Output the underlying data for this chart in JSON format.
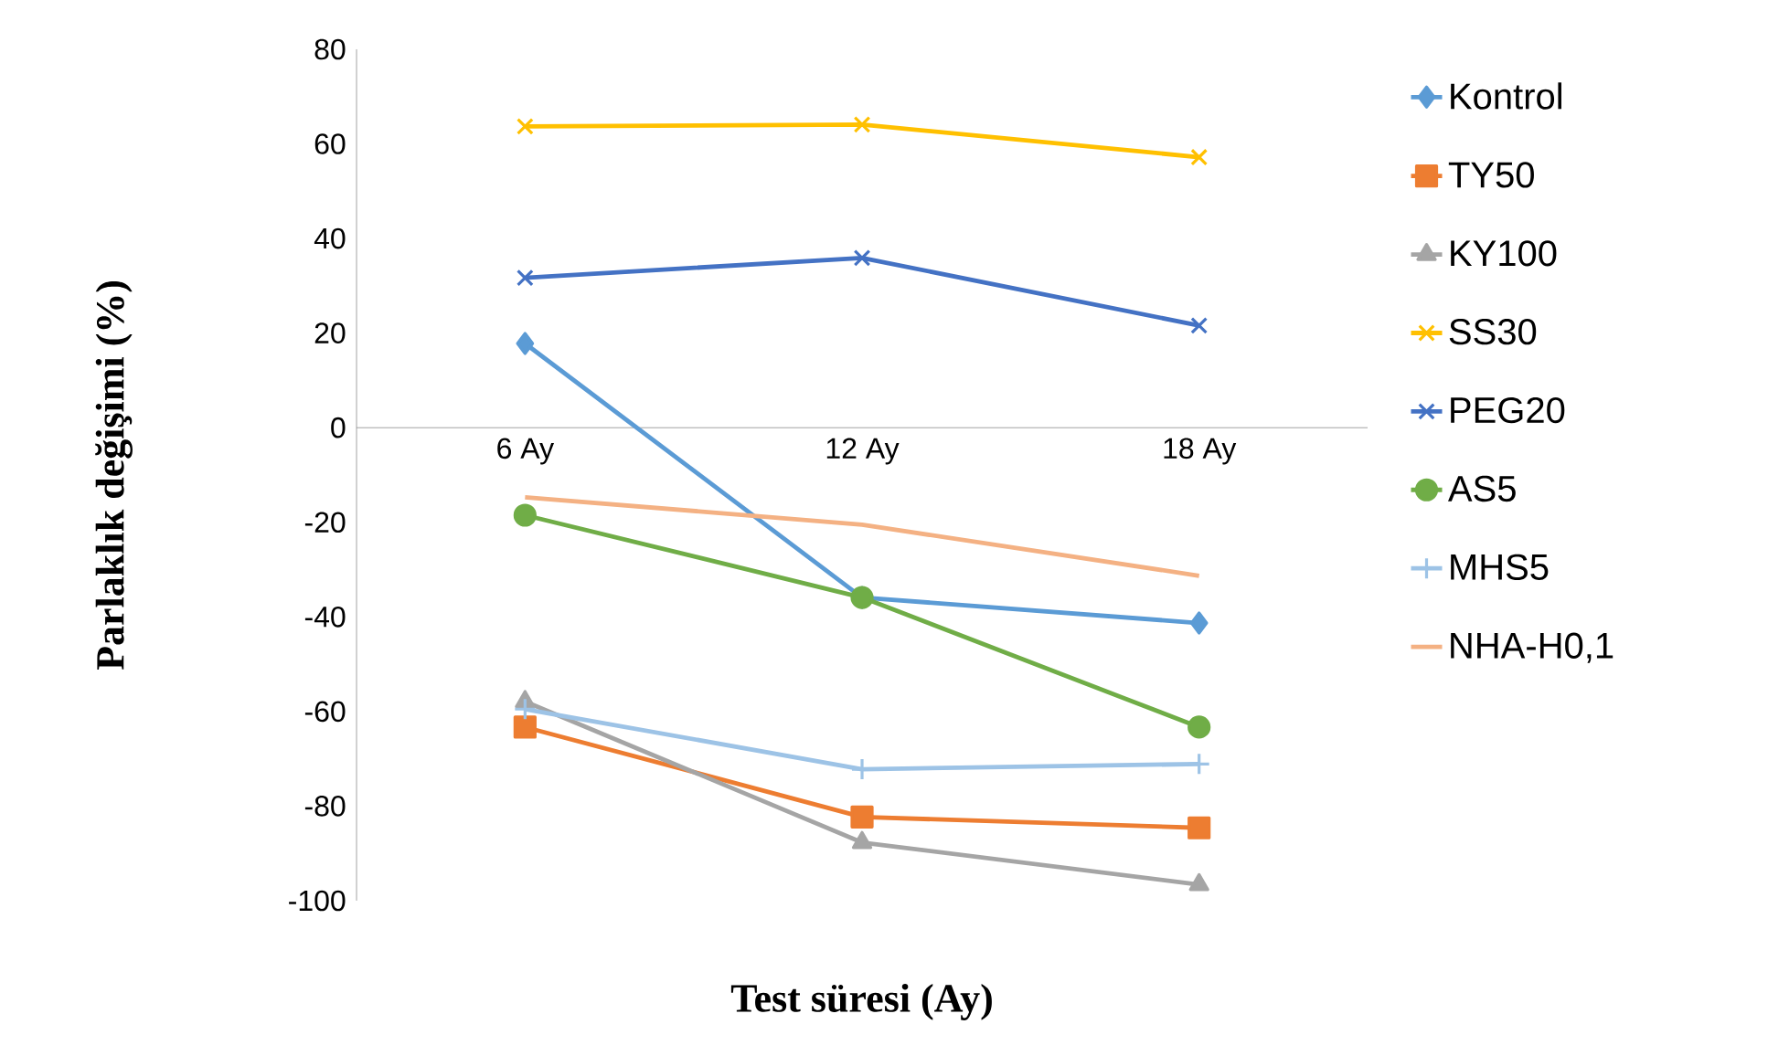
{
  "chart_data": {
    "type": "line",
    "xlabel": "Test süresi (Ay)",
    "ylabel": "Parlaklık değişimi (%)",
    "categories": [
      "6 Ay",
      "12 Ay",
      "18 Ay"
    ],
    "ylim": [
      -100,
      80
    ],
    "yticks": [
      -100,
      -80,
      -60,
      -40,
      -20,
      0,
      20,
      40,
      60,
      80
    ],
    "legend": "right",
    "series": [
      {
        "name": "Kontrol",
        "color": "#5b9bd5",
        "marker": "diamond",
        "values": [
          17.8,
          -35.9,
          -41.3
        ]
      },
      {
        "name": "TY50",
        "color": "#ed7d31",
        "marker": "square",
        "values": [
          -63.3,
          -82.3,
          -84.6
        ]
      },
      {
        "name": "KY100",
        "color": "#a5a5a5",
        "marker": "triangle",
        "values": [
          -57.9,
          -87.7,
          -96.6
        ]
      },
      {
        "name": "SS30",
        "color": "#ffc000",
        "marker": "cross",
        "values": [
          63.7,
          64.1,
          57.2
        ]
      },
      {
        "name": "PEG20",
        "color": "#4472c4",
        "marker": "cross",
        "values": [
          31.7,
          35.9,
          21.6
        ]
      },
      {
        "name": "AS5",
        "color": "#70ad47",
        "marker": "circle",
        "values": [
          -18.5,
          -35.9,
          -63.3
        ]
      },
      {
        "name": "MHS5",
        "color": "#9dc3e6",
        "marker": "plus",
        "values": [
          -59.5,
          -72.2,
          -71.1
        ]
      },
      {
        "name": "NHA-H0,1",
        "color": "#f4b183",
        "marker": "none",
        "values": [
          -14.7,
          -20.5,
          -31.3
        ]
      }
    ]
  }
}
